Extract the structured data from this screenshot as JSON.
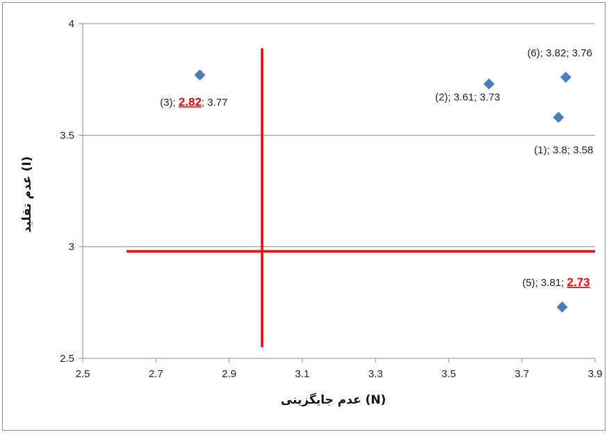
{
  "chart_data": {
    "type": "scatter",
    "xlabel": "عدم جایگزینی (N)",
    "ylabel": "عدم تقلید (I)",
    "xlim": [
      2.5,
      3.9
    ],
    "ylim": [
      2.5,
      4
    ],
    "x_ticks": [
      "2.5",
      "2.7",
      "2.9",
      "3.1",
      "3.3",
      "3.5",
      "3.7",
      "3.9"
    ],
    "y_ticks": [
      "2.5",
      "3",
      "3.5",
      "4"
    ],
    "grid": "horizontal",
    "marker_color": "#4a7ebb",
    "highlight_color": "#ff0000",
    "points": [
      {
        "id": "(1)",
        "x": 3.8,
        "y": 3.58,
        "x_text": "3.8",
        "y_text": "3.58",
        "highlight": null,
        "label_pos": "below-left"
      },
      {
        "id": "(2)",
        "x": 3.61,
        "y": 3.73,
        "x_text": "3.61",
        "y_text": "3.73",
        "highlight": null,
        "label_pos": "below-left"
      },
      {
        "id": "(3)",
        "x": 2.82,
        "y": 3.77,
        "x_text": "2.82",
        "y_text": "3.77",
        "highlight": "x",
        "label_pos": "below-left"
      },
      {
        "id": "(5)",
        "x": 3.81,
        "y": 2.73,
        "x_text": "3.81",
        "y_text": "2.73",
        "highlight": "y",
        "label_pos": "above-left"
      },
      {
        "id": "(6)",
        "x": 3.82,
        "y": 3.76,
        "x_text": "3.82",
        "y_text": "3.76",
        "highlight": null,
        "label_pos": "above-left"
      }
    ],
    "reference_lines": [
      {
        "orientation": "horizontal",
        "at": 2.98,
        "from": 2.62,
        "to": 3.9,
        "color": "#ff0000"
      },
      {
        "orientation": "vertical",
        "at": 2.99,
        "from": 2.55,
        "to": 3.89,
        "color": "#ff0000"
      }
    ]
  }
}
